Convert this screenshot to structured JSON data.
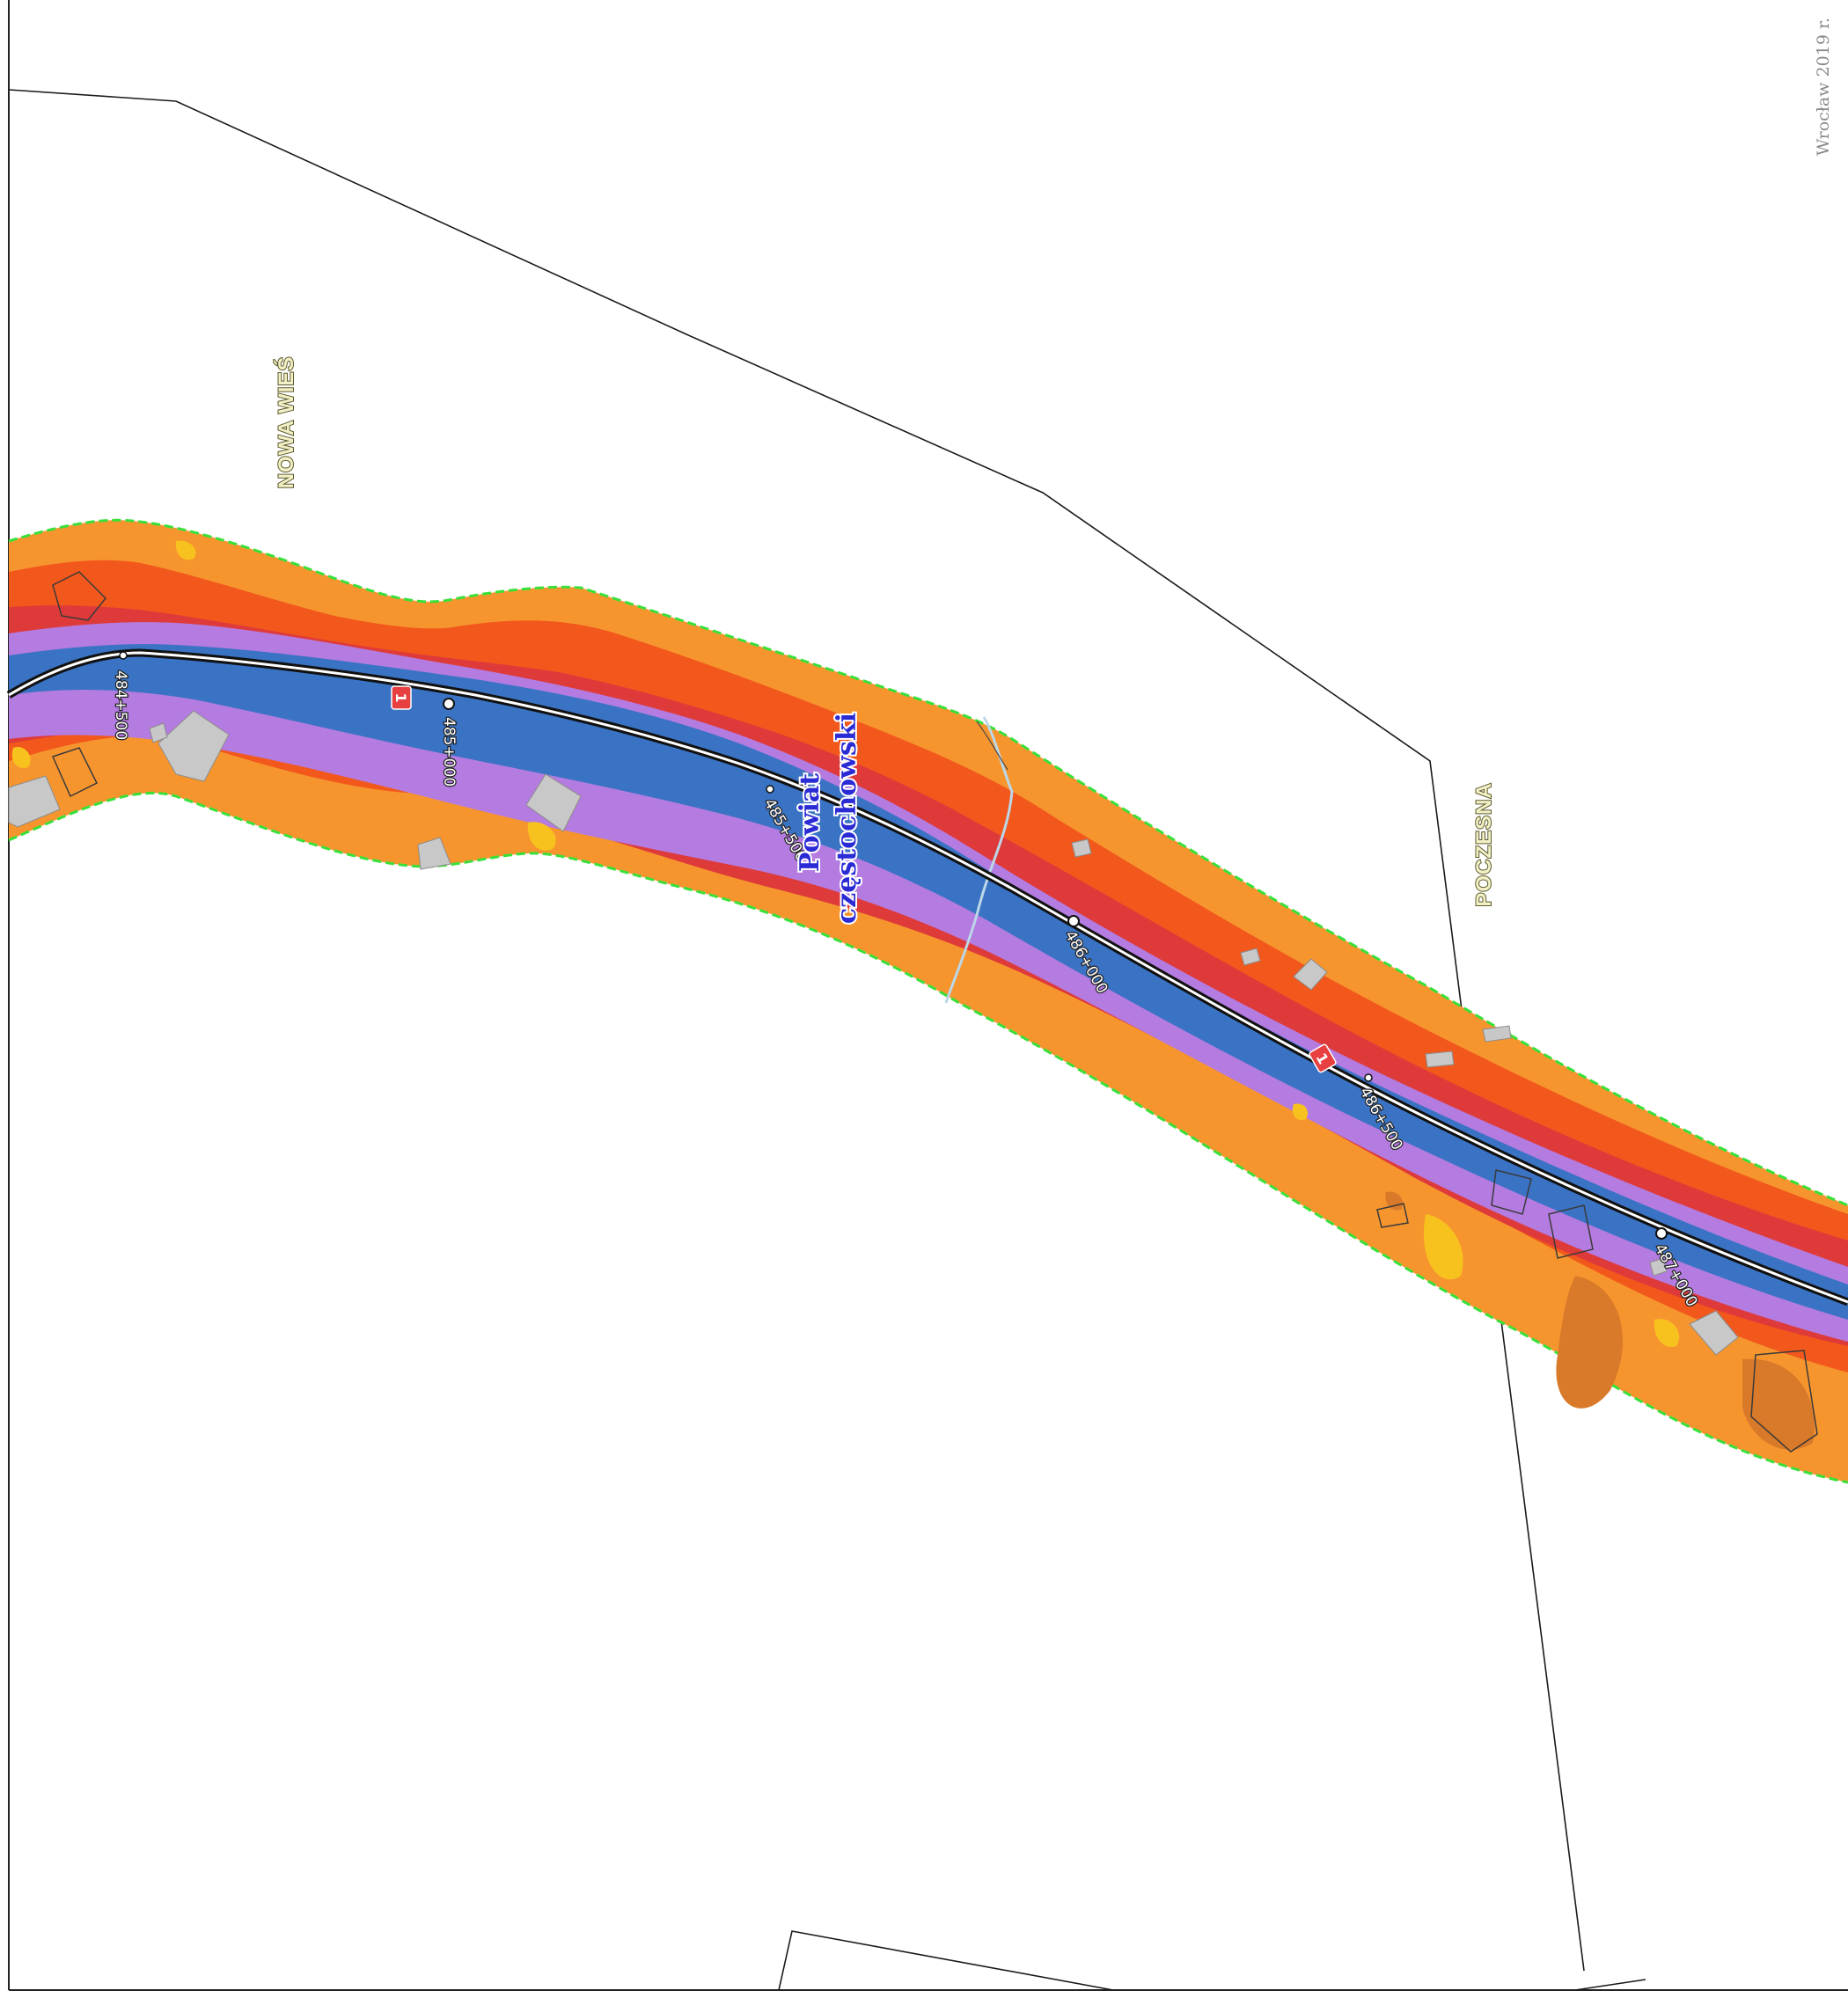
{
  "footer": {
    "text": "Wrocław  2019 r."
  },
  "places": {
    "nowa_wies": "NOWA WIEŚ",
    "poczesna": "POCZESNA"
  },
  "county": {
    "line1": "Powiat",
    "line2": "częstochowski"
  },
  "chainage": [
    {
      "label": "484+500"
    },
    {
      "label": "485+000"
    },
    {
      "label": "485+500"
    },
    {
      "label": "486+000"
    },
    {
      "label": "486+500"
    },
    {
      "label": "487+000"
    }
  ],
  "road_marker": "1",
  "colors": {
    "outer_orange": "#f6952e",
    "orange_red": "#f2581c",
    "red": "#de3a3a",
    "purple": "#b47be0",
    "blue": "#3a73c4",
    "buffer_boundary": "#39e039",
    "building": "#c8c8c8",
    "yellow": "#f8c21e",
    "stream": "#bcd7e8",
    "road_marker": "#e84040"
  }
}
